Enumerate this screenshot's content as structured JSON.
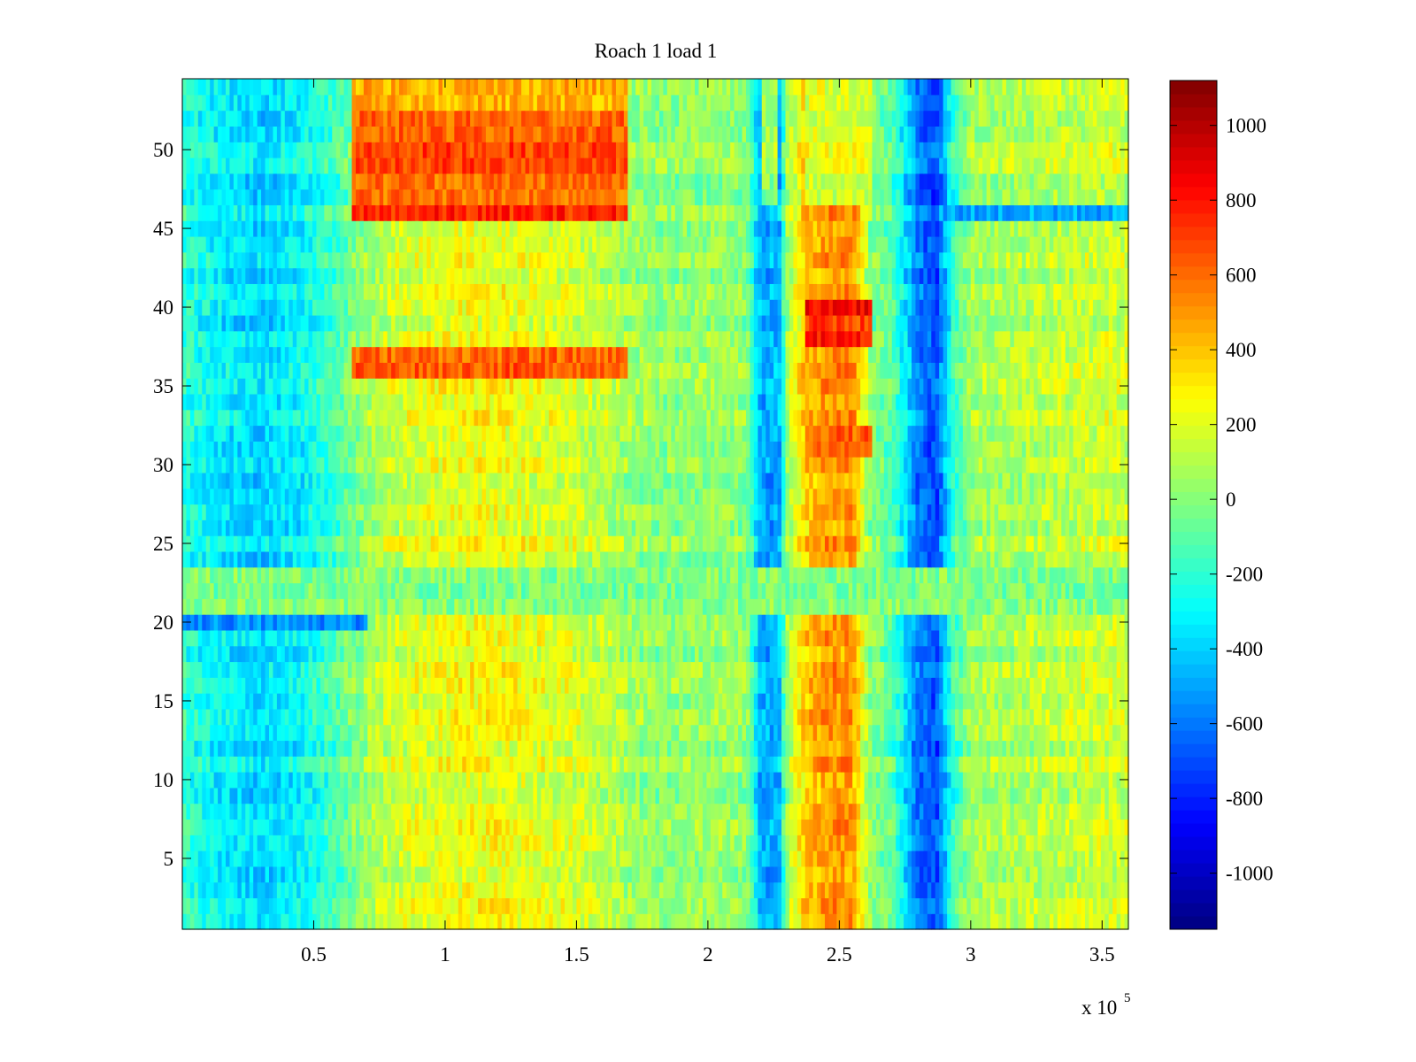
{
  "chart_data": {
    "type": "heatmap",
    "title": "Roach 1 load 1",
    "xlabel": "",
    "ylabel": "",
    "x_exponent_label": "x 10",
    "x_exponent": "5",
    "xlim": [
      0,
      3.6
    ],
    "ylim": [
      0.5,
      54.5
    ],
    "x_ticks": [
      0.5,
      1,
      1.5,
      2,
      2.5,
      3,
      3.5
    ],
    "x_tick_labels": [
      "0.5",
      "1",
      "1.5",
      "2",
      "2.5",
      "3",
      "3.5"
    ],
    "y_ticks": [
      5,
      10,
      15,
      20,
      25,
      30,
      35,
      40,
      45,
      50
    ],
    "y_tick_labels": [
      "5",
      "10",
      "15",
      "20",
      "25",
      "30",
      "35",
      "40",
      "45",
      "50"
    ],
    "rows": 54,
    "colorbar": {
      "limits": [
        -1150,
        1120
      ],
      "ticks": [
        -1000,
        -800,
        -600,
        -400,
        -200,
        0,
        200,
        400,
        600,
        800,
        1000
      ],
      "tick_labels": [
        "-1000",
        "-800",
        "-600",
        "-400",
        "-200",
        "0",
        "200",
        "400",
        "600",
        "800",
        "1000"
      ],
      "colormap": "jet"
    },
    "column_profile": {
      "x": [
        0.0,
        0.15,
        0.3,
        0.45,
        0.6,
        0.7,
        0.8,
        0.9,
        1.0,
        1.1,
        1.2,
        1.3,
        1.4,
        1.5,
        1.6,
        1.7,
        1.8,
        1.9,
        2.0,
        2.1,
        2.15,
        2.2,
        2.27,
        2.3,
        2.37,
        2.45,
        2.55,
        2.62,
        2.7,
        2.8,
        2.87,
        2.93,
        3.0,
        3.1,
        3.2,
        3.3,
        3.4,
        3.5,
        3.6
      ],
      "values": [
        -200,
        -320,
        -380,
        -300,
        -120,
        60,
        160,
        200,
        230,
        250,
        250,
        230,
        200,
        170,
        120,
        60,
        20,
        20,
        40,
        40,
        0,
        -480,
        -480,
        60,
        380,
        500,
        500,
        0,
        -100,
        -600,
        -700,
        -200,
        60,
        80,
        100,
        120,
        140,
        160,
        150
      ]
    },
    "row_bands": [
      {
        "rows": [
          46,
          46
        ],
        "x_range": [
          0.65,
          1.7
        ],
        "value": 700
      },
      {
        "rows": [
          47,
          51
        ],
        "x_range": [
          0.65,
          1.7
        ],
        "value": 650
      },
      {
        "rows": [
          52,
          52
        ],
        "x_range": [
          0.65,
          1.7
        ],
        "value": 650
      },
      {
        "rows": [
          53,
          54
        ],
        "x_range": [
          0.65,
          1.7
        ],
        "value": 450
      },
      {
        "rows": [
          47,
          54
        ],
        "x_range": [
          2.2,
          2.27
        ],
        "value": 60
      },
      {
        "rows": [
          47,
          54
        ],
        "x_range": [
          2.37,
          2.62
        ],
        "value": 200
      },
      {
        "rows": [
          46,
          46
        ],
        "x_range": [
          2.9,
          3.6
        ],
        "value": -550
      },
      {
        "rows": [
          36,
          37
        ],
        "x_range": [
          0.65,
          1.7
        ],
        "value": 600
      },
      {
        "rows": [
          38,
          39
        ],
        "x_range": [
          2.37,
          2.62
        ],
        "value": 750
      },
      {
        "rows": [
          40,
          40
        ],
        "x_range": [
          2.37,
          2.62
        ],
        "value": 850
      },
      {
        "rows": [
          31,
          32
        ],
        "x_range": [
          2.37,
          2.62
        ],
        "value": 650
      },
      {
        "rows": [
          21,
          23
        ],
        "x_range": [
          0.0,
          3.6
        ],
        "value": 0
      },
      {
        "rows": [
          20,
          20
        ],
        "x_range": [
          0.0,
          0.7
        ],
        "value": -550
      }
    ]
  }
}
